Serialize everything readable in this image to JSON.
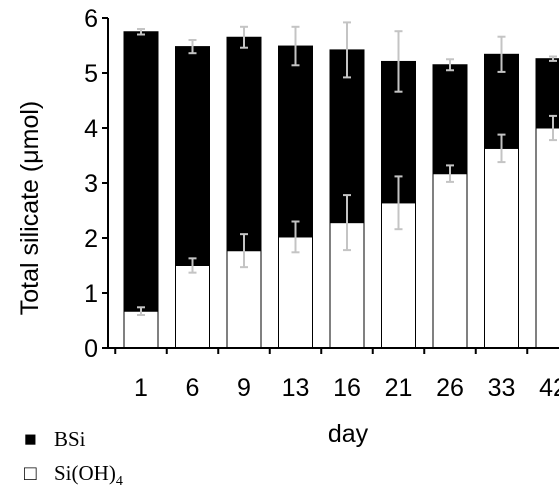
{
  "chart_data": {
    "type": "bar",
    "stacked": true,
    "xlabel": "day",
    "ylabel": "Total silicate (μmol)",
    "ylim": [
      0,
      6
    ],
    "yticks": [
      0,
      1,
      2,
      3,
      4,
      5,
      6
    ],
    "categories": [
      "1",
      "6",
      "9",
      "13",
      "16",
      "21",
      "26",
      "33",
      "42"
    ],
    "series": [
      {
        "name": "Si(OH)4",
        "color": "#ffffff",
        "values": [
          0.67,
          1.5,
          1.77,
          2.02,
          2.28,
          2.64,
          3.17,
          3.63,
          4.0
        ],
        "errors": [
          0.07,
          0.13,
          0.3,
          0.28,
          0.5,
          0.48,
          0.15,
          0.25,
          0.22
        ]
      },
      {
        "name": "BSi",
        "color": "#000000",
        "values": [
          5.08,
          3.98,
          3.88,
          3.47,
          3.14,
          2.57,
          1.98,
          1.71,
          1.26
        ],
        "errors": [
          0.05,
          0.12,
          0.19,
          0.35,
          0.5,
          0.55,
          0.1,
          0.32,
          0.04
        ]
      }
    ],
    "grid": false,
    "legend": {
      "placement": "bottom-left",
      "entries": [
        {
          "label": "BSi",
          "symbol": "■"
        },
        {
          "label_main": "Si(OH)",
          "label_sub": "4",
          "symbol": "□"
        }
      ]
    }
  }
}
